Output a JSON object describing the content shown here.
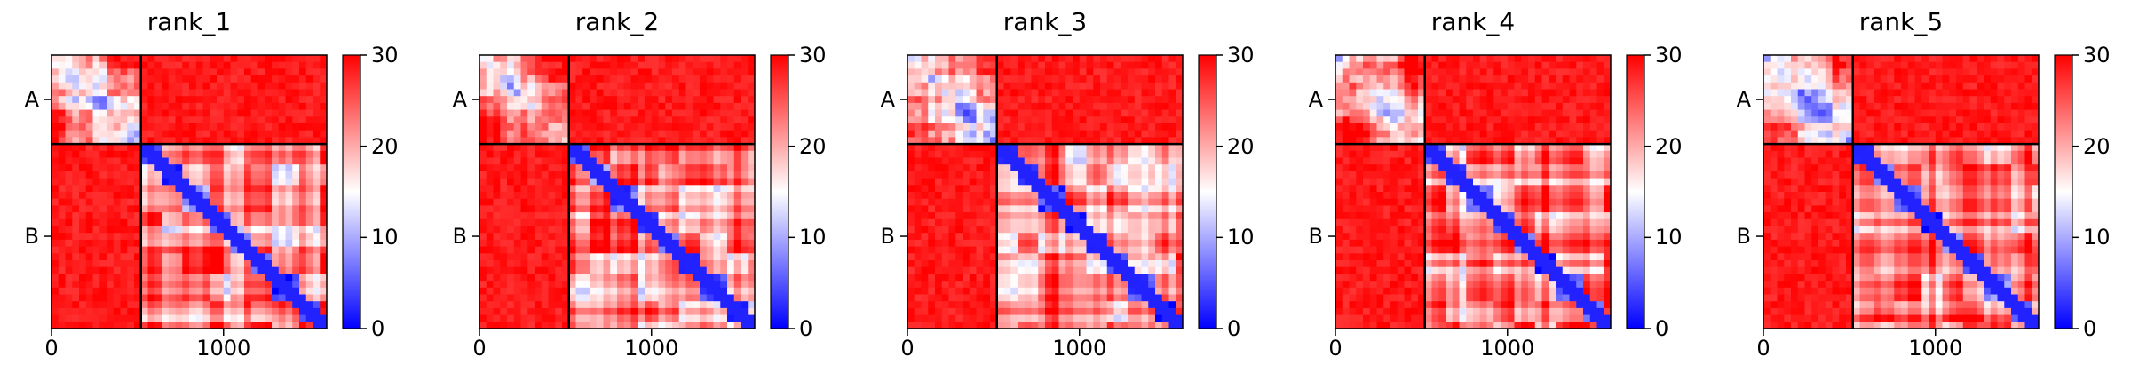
{
  "figure": {
    "background": "#ffffff"
  },
  "chart_data": [
    {
      "type": "heatmap",
      "title": "rank_1",
      "chains": [
        "A",
        "B"
      ],
      "chain_boundary": 520,
      "total_length": 1600,
      "x_ticks": [
        0,
        1000
      ],
      "x_tick_labels": [
        "0",
        "1000"
      ],
      "y_tick_labels": [
        "A",
        "B"
      ],
      "colorbar": {
        "min": 0,
        "max": 30,
        "ticks": [
          "0",
          "10",
          "20",
          "30"
        ],
        "colormap": "bwr",
        "low_color": "#0000ff",
        "mid_color": "#ffffff",
        "high_color": "#ff0000"
      },
      "grid": false
    },
    {
      "type": "heatmap",
      "title": "rank_2",
      "chains": [
        "A",
        "B"
      ],
      "chain_boundary": 520,
      "total_length": 1600,
      "x_ticks": [
        0,
        1000
      ],
      "x_tick_labels": [
        "0",
        "1000"
      ],
      "y_tick_labels": [
        "A",
        "B"
      ],
      "colorbar": {
        "min": 0,
        "max": 30,
        "ticks": [
          "0",
          "10",
          "20",
          "30"
        ],
        "colormap": "bwr",
        "low_color": "#0000ff",
        "mid_color": "#ffffff",
        "high_color": "#ff0000"
      },
      "grid": false
    },
    {
      "type": "heatmap",
      "title": "rank_3",
      "chains": [
        "A",
        "B"
      ],
      "chain_boundary": 520,
      "total_length": 1600,
      "x_ticks": [
        0,
        1000
      ],
      "x_tick_labels": [
        "0",
        "1000"
      ],
      "y_tick_labels": [
        "A",
        "B"
      ],
      "colorbar": {
        "min": 0,
        "max": 30,
        "ticks": [
          "0",
          "10",
          "20",
          "30"
        ],
        "colormap": "bwr",
        "low_color": "#0000ff",
        "mid_color": "#ffffff",
        "high_color": "#ff0000"
      },
      "grid": false
    },
    {
      "type": "heatmap",
      "title": "rank_4",
      "chains": [
        "A",
        "B"
      ],
      "chain_boundary": 520,
      "total_length": 1600,
      "x_ticks": [
        0,
        1000
      ],
      "x_tick_labels": [
        "0",
        "1000"
      ],
      "y_tick_labels": [
        "A",
        "B"
      ],
      "colorbar": {
        "min": 0,
        "max": 30,
        "ticks": [
          "0",
          "10",
          "20",
          "30"
        ],
        "colormap": "bwr",
        "low_color": "#0000ff",
        "mid_color": "#ffffff",
        "high_color": "#ff0000"
      },
      "grid": false
    },
    {
      "type": "heatmap",
      "title": "rank_5",
      "chains": [
        "A",
        "B"
      ],
      "chain_boundary": 520,
      "total_length": 1600,
      "x_ticks": [
        0,
        1000
      ],
      "x_tick_labels": [
        "0",
        "1000"
      ],
      "y_tick_labels": [
        "A",
        "B"
      ],
      "colorbar": {
        "min": 0,
        "max": 30,
        "ticks": [
          "0",
          "10",
          "20",
          "30"
        ],
        "colormap": "bwr",
        "low_color": "#0000ff",
        "mid_color": "#ffffff",
        "high_color": "#ff0000"
      },
      "grid": false
    }
  ]
}
